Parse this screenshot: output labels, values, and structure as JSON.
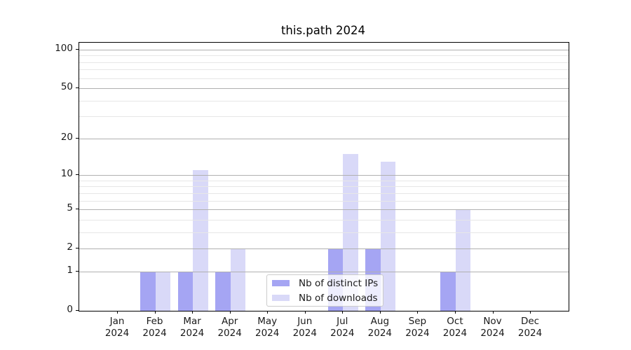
{
  "figure": {
    "title": "this.path 2024",
    "background": "#ffffff"
  },
  "chart_data": {
    "type": "bar",
    "title": "this.path 2024",
    "categories": [
      "Jan 2024",
      "Feb 2024",
      "Mar 2024",
      "Apr 2024",
      "May 2024",
      "Jun 2024",
      "Jul 2024",
      "Aug 2024",
      "Sep 2024",
      "Oct 2024",
      "Nov 2024",
      "Dec 2024"
    ],
    "series": [
      {
        "name": "Nb of distinct IPs",
        "color": "#a5a5f3",
        "values": [
          0,
          1,
          1,
          1,
          0,
          0,
          2,
          2,
          0,
          1,
          0,
          0
        ]
      },
      {
        "name": "Nb of downloads",
        "color": "#d9d9f8",
        "values": [
          0,
          1,
          11,
          2,
          0,
          0,
          15,
          13,
          0,
          5,
          0,
          0
        ]
      }
    ],
    "yscale": "log1p",
    "yticks": [
      0,
      1,
      2,
      5,
      10,
      20,
      50,
      100
    ],
    "minor_yticks": [
      3,
      4,
      6,
      7,
      8,
      9,
      30,
      40,
      60,
      70,
      80,
      90
    ],
    "ylim": [
      0,
      113
    ],
    "xlabel": "",
    "ylabel": "",
    "grid": true,
    "grid_above_bars": true,
    "legend_position": "lower center",
    "colors": {
      "axis": "#000000",
      "major_grid": "#b0b0b0",
      "minor_grid": "#e7e7e7",
      "text": "#1a1a1a"
    }
  }
}
